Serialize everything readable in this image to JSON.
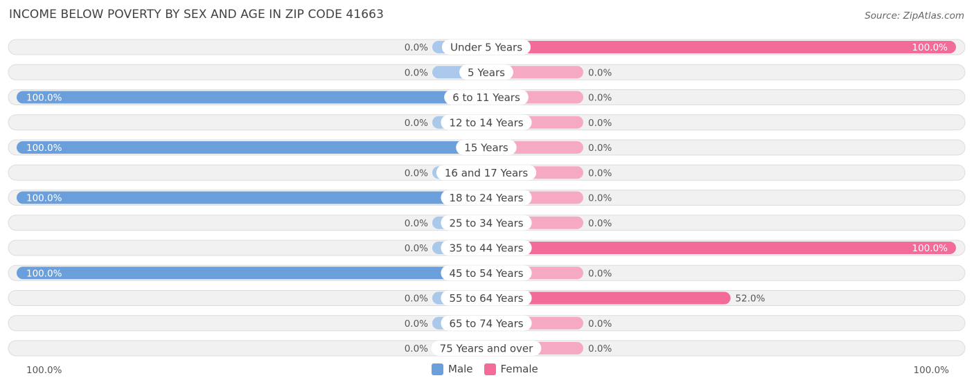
{
  "header": {
    "title": "INCOME BELOW POVERTY BY SEX AND AGE IN ZIP CODE 41663",
    "source": "Source: ZipAtlas.com"
  },
  "axis": {
    "left_label": "100.0%",
    "right_label": "100.0%"
  },
  "legend": {
    "male_label": "Male",
    "female_label": "Female"
  },
  "colors": {
    "male_strong": "#6a9fdc",
    "male_light": "#aac8ea",
    "female_strong": "#f36b98",
    "female_light": "#f6a9c2",
    "row_bg": "#f1f1f1",
    "row_border": "#dcdcdc"
  },
  "chart_data": {
    "type": "bar",
    "orientation": "horizontal-diverging",
    "title": "INCOME BELOW POVERTY BY SEX AND AGE IN ZIP CODE 41663",
    "xlim": [
      -100,
      100
    ],
    "categories": [
      "Under 5 Years",
      "5 Years",
      "6 to 11 Years",
      "12 to 14 Years",
      "15 Years",
      "16 and 17 Years",
      "18 to 24 Years",
      "25 to 34 Years",
      "35 to 44 Years",
      "45 to 54 Years",
      "55 to 64 Years",
      "65 to 74 Years",
      "75 Years and over"
    ],
    "series": [
      {
        "name": "Male",
        "values": [
          0.0,
          0.0,
          100.0,
          0.0,
          100.0,
          0.0,
          100.0,
          0.0,
          0.0,
          100.0,
          0.0,
          0.0,
          0.0
        ],
        "labels": [
          "0.0%",
          "0.0%",
          "100.0%",
          "0.0%",
          "100.0%",
          "0.0%",
          "100.0%",
          "0.0%",
          "0.0%",
          "100.0%",
          "0.0%",
          "0.0%",
          "0.0%"
        ]
      },
      {
        "name": "Female",
        "values": [
          100.0,
          0.0,
          0.0,
          0.0,
          0.0,
          0.0,
          0.0,
          0.0,
          100.0,
          0.0,
          52.0,
          0.0,
          0.0
        ],
        "labels": [
          "100.0%",
          "0.0%",
          "0.0%",
          "0.0%",
          "0.0%",
          "0.0%",
          "0.0%",
          "0.0%",
          "100.0%",
          "0.0%",
          "52.0%",
          "0.0%",
          "0.0%"
        ]
      }
    ],
    "legend_position": "bottom-center"
  }
}
